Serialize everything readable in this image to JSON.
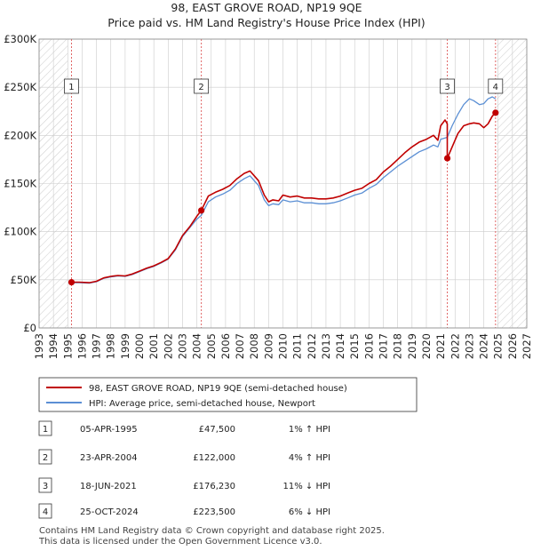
{
  "chart_data": {
    "type": "line",
    "title": "98, EAST GROVE ROAD, NP19 9QE",
    "subtitle": "Price paid vs. HM Land Registry's House Price Index (HPI)",
    "xlabel": "",
    "ylabel": "",
    "xlim": [
      1993,
      2027
    ],
    "ylim": [
      0,
      300000
    ],
    "y_ticks": [
      {
        "value": 0,
        "label": "£0"
      },
      {
        "value": 50000,
        "label": "£50K"
      },
      {
        "value": 100000,
        "label": "£100K"
      },
      {
        "value": 150000,
        "label": "£150K"
      },
      {
        "value": 200000,
        "label": "£200K"
      },
      {
        "value": 250000,
        "label": "£250K"
      },
      {
        "value": 300000,
        "label": "£300K"
      }
    ],
    "x_ticks": [
      "1993",
      "1994",
      "1995",
      "1996",
      "1997",
      "1998",
      "1999",
      "2000",
      "2001",
      "2002",
      "2003",
      "2004",
      "2005",
      "2006",
      "2007",
      "2008",
      "2009",
      "2010",
      "2011",
      "2012",
      "2013",
      "2014",
      "2015",
      "2016",
      "2017",
      "2018",
      "2019",
      "2020",
      "2021",
      "2022",
      "2023",
      "2024",
      "2025",
      "2026",
      "2027"
    ],
    "hatch_ranges": [
      [
        1993,
        1995.0
      ],
      [
        2024.9,
        2027
      ]
    ],
    "colors": {
      "property": "#c00000",
      "hpi": "#5b8fd4",
      "marker_line": "#e06666",
      "grid": "#cccccc"
    },
    "series": [
      {
        "name": "98, EAST GROVE ROAD, NP19 9QE (semi-detached house)",
        "color": "#c00000",
        "x": [
          1995.26,
          1995.8,
          1996.5,
          1997.0,
          1997.5,
          1998.0,
          1998.5,
          1999.0,
          1999.5,
          2000.0,
          2000.5,
          2001.0,
          2001.5,
          2002.0,
          2002.5,
          2003.0,
          2003.5,
          2004.0,
          2004.31,
          2004.31,
          2004.8,
          2005.3,
          2005.8,
          2006.3,
          2006.8,
          2007.3,
          2007.7,
          2008.0,
          2008.3,
          2008.7,
          2009.0,
          2009.3,
          2009.7,
          2010.0,
          2010.5,
          2011.0,
          2011.5,
          2012.0,
          2012.5,
          2013.0,
          2013.5,
          2014.0,
          2014.5,
          2015.0,
          2015.5,
          2016.0,
          2016.5,
          2017.0,
          2017.5,
          2018.0,
          2018.5,
          2019.0,
          2019.5,
          2020.0,
          2020.5,
          2020.8,
          2021.0,
          2021.3,
          2021.46,
          2021.46,
          2021.8,
          2022.2,
          2022.6,
          2023.0,
          2023.3,
          2023.7,
          2024.0,
          2024.3,
          2024.6,
          2024.82
        ],
        "values": [
          47500,
          47500,
          47000,
          48500,
          52000,
          53500,
          54500,
          54000,
          56000,
          59000,
          62000,
          64500,
          68000,
          72000,
          82000,
          96000,
          105000,
          116000,
          122000,
          122000,
          137000,
          141000,
          144000,
          148000,
          155000,
          160500,
          163000,
          158000,
          153000,
          138000,
          131000,
          133000,
          132000,
          138000,
          136000,
          137000,
          135000,
          135000,
          134000,
          134000,
          135000,
          137000,
          140000,
          143000,
          145000,
          150000,
          154000,
          162000,
          168000,
          175000,
          182000,
          188000,
          193000,
          196000,
          200000,
          195000,
          210000,
          216000,
          212000,
          176230,
          188000,
          202000,
          210000,
          212000,
          213000,
          212000,
          208000,
          212000,
          220000,
          223500
        ]
      },
      {
        "name": "HPI: Average price, semi-detached house, Newport",
        "color": "#5b8fd4",
        "x": [
          1995.26,
          1995.8,
          1996.5,
          1997.0,
          1997.5,
          1998.0,
          1998.5,
          1999.0,
          1999.5,
          2000.0,
          2000.5,
          2001.0,
          2001.5,
          2002.0,
          2002.5,
          2003.0,
          2003.5,
          2004.0,
          2004.31,
          2004.8,
          2005.3,
          2005.8,
          2006.3,
          2006.8,
          2007.3,
          2007.7,
          2008.0,
          2008.3,
          2008.7,
          2009.0,
          2009.3,
          2009.7,
          2010.0,
          2010.5,
          2011.0,
          2011.5,
          2012.0,
          2012.5,
          2013.0,
          2013.5,
          2014.0,
          2014.5,
          2015.0,
          2015.5,
          2016.0,
          2016.5,
          2017.0,
          2017.5,
          2018.0,
          2018.5,
          2019.0,
          2019.5,
          2020.0,
          2020.5,
          2020.8,
          2021.0,
          2021.46,
          2021.8,
          2022.2,
          2022.6,
          2023.0,
          2023.3,
          2023.7,
          2024.0,
          2024.3,
          2024.6,
          2024.82
        ],
        "values": [
          47000,
          47000,
          46500,
          48000,
          51500,
          53000,
          54000,
          53500,
          55500,
          58500,
          61500,
          64000,
          67500,
          71500,
          81000,
          95000,
          104000,
          113000,
          117000,
          131000,
          136000,
          139000,
          143000,
          150000,
          155000,
          158000,
          153000,
          148000,
          133000,
          127000,
          129000,
          128000,
          133000,
          131000,
          132000,
          130000,
          130000,
          129000,
          129000,
          130000,
          132000,
          135000,
          138000,
          140000,
          145000,
          149000,
          156000,
          162000,
          168000,
          173000,
          178000,
          183000,
          186000,
          190000,
          188000,
          196000,
          198000,
          210000,
          222000,
          232000,
          238000,
          236000,
          232000,
          233000,
          238000,
          240000,
          238000
        ]
      }
    ],
    "markers": [
      {
        "label": "1",
        "x": 1995.26,
        "value": 47500
      },
      {
        "label": "2",
        "x": 2004.31,
        "value": 122000
      },
      {
        "label": "3",
        "x": 2021.46,
        "value": 176230
      },
      {
        "label": "4",
        "x": 2024.82,
        "value": 223500
      }
    ]
  },
  "legend": {
    "property": "98, EAST GROVE ROAD, NP19 9QE (semi-detached house)",
    "hpi": "HPI: Average price, semi-detached house, Newport"
  },
  "transactions": [
    {
      "num": "1",
      "date": "05-APR-1995",
      "price": "£47,500",
      "hpi": "1% ↑ HPI"
    },
    {
      "num": "2",
      "date": "23-APR-2004",
      "price": "£122,000",
      "hpi": "4% ↑ HPI"
    },
    {
      "num": "3",
      "date": "18-JUN-2021",
      "price": "£176,230",
      "hpi": "11% ↓ HPI"
    },
    {
      "num": "4",
      "date": "25-OCT-2024",
      "price": "£223,500",
      "hpi": "6% ↓ HPI"
    }
  ],
  "footer": {
    "line1": "Contains HM Land Registry data © Crown copyright and database right 2025.",
    "line2": "This data is licensed under the Open Government Licence v3.0."
  }
}
